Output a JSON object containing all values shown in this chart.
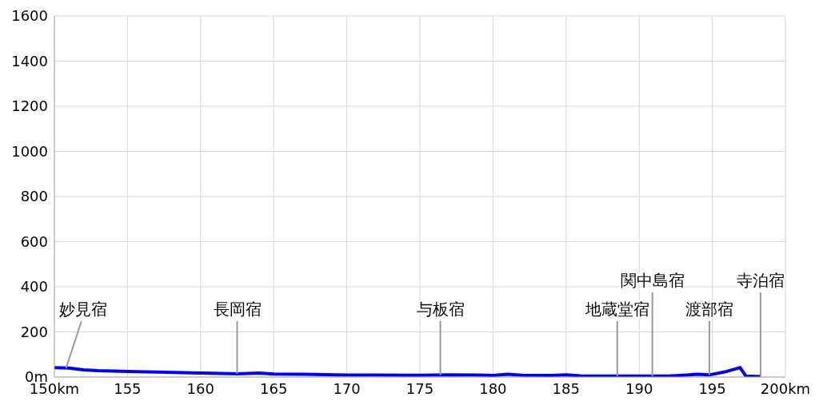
{
  "chart_data": {
    "type": "line",
    "x": [
      150,
      151,
      152,
      153,
      155,
      157,
      160,
      162,
      162.5,
      164,
      165,
      167,
      170,
      172,
      175,
      177,
      179,
      180,
      181,
      182,
      184,
      185,
      186,
      187,
      190,
      192,
      193,
      194,
      194.8,
      195,
      196,
      196.9,
      197.3,
      198,
      198.3
    ],
    "series": [
      {
        "color": "#0000ff",
        "values": [
          42,
          40,
          32,
          28,
          25,
          22,
          18,
          15,
          14,
          18,
          13,
          12,
          9,
          9,
          8,
          10,
          9,
          7,
          12,
          8,
          7,
          10,
          5,
          4,
          4,
          4,
          8,
          12,
          10,
          12,
          25,
          42,
          4,
          3,
          3
        ]
      }
    ],
    "xlim": [
      150,
      200
    ],
    "xticks": [
      {
        "value": 150,
        "label": "150km"
      },
      155,
      160,
      165,
      170,
      175,
      180,
      185,
      190,
      195,
      {
        "value": 200,
        "label": "200km"
      }
    ],
    "ylim": [
      0,
      1600
    ],
    "yticks": [
      {
        "value": 0,
        "label": "0m"
      },
      200,
      400,
      600,
      800,
      1000,
      1200,
      1400,
      1600
    ],
    "grid": true,
    "marker": "none",
    "line_style": "solid",
    "annotations": [
      {
        "text": "妙見宿",
        "x": 150.8,
        "y": 40
      },
      {
        "text": "長岡宿",
        "x": 162.5,
        "y": 14
      },
      {
        "text": "与板宿",
        "x": 176.4,
        "y": 9
      },
      {
        "text": "地蔵堂宿",
        "x": 188.5,
        "y": 4
      },
      {
        "text": "関中島宿",
        "x": 190.9,
        "y": 4
      },
      {
        "text": "渡部宿",
        "x": 194.8,
        "y": 10
      },
      {
        "text": "寺泊宿",
        "x": 198.3,
        "y": 3
      }
    ]
  }
}
